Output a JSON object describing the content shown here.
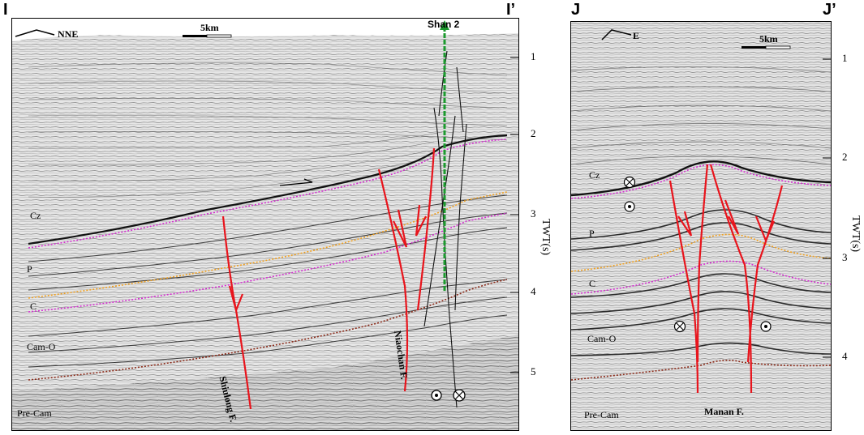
{
  "left_panel": {
    "start_label": "I",
    "end_label": "I’",
    "direction": "NNE",
    "scale": "5km",
    "well": "Shan 2",
    "strata": [
      "Cz",
      "P",
      "C",
      "Cam-O",
      "Pre-Cam"
    ],
    "faults": [
      "Shiulong F.",
      "Niaochan F."
    ],
    "twt_ticks": [
      "1",
      "2",
      "3",
      "4",
      "5"
    ],
    "axis_title": "TWT(s)"
  },
  "right_panel": {
    "start_label": "J",
    "end_label": "J’",
    "direction": "E",
    "scale": "5km",
    "strata": [
      "Cz",
      "P",
      "C",
      "Cam-O",
      "Pre-Cam"
    ],
    "fault": "Manan F.",
    "twt_ticks": [
      "1",
      "2",
      "3",
      "4"
    ],
    "axis_title": "TWT(s)"
  },
  "colors": {
    "fault": "#e8141c",
    "well": "#1c9a2e",
    "horizon_pink": "#d42fd0",
    "horizon_orange": "#f0a020",
    "horizon_brown": "#8b2b1a"
  }
}
